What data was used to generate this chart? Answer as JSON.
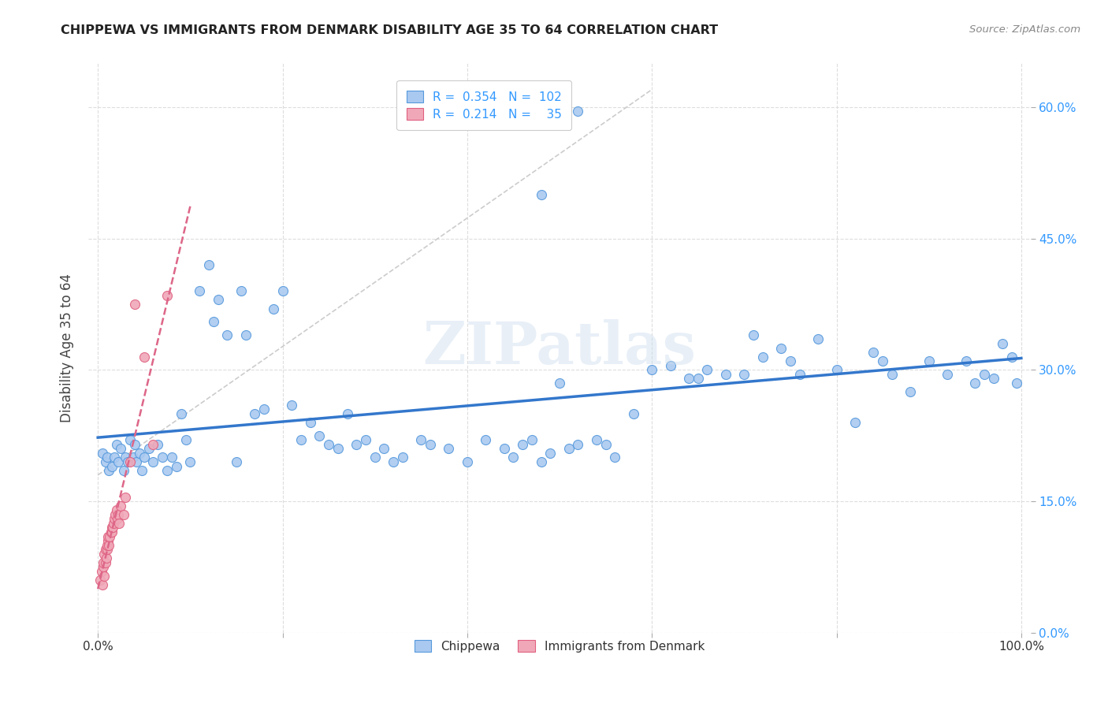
{
  "title": "CHIPPEWA VS IMMIGRANTS FROM DENMARK DISABILITY AGE 35 TO 64 CORRELATION CHART",
  "source": "Source: ZipAtlas.com",
  "ylabel": "Disability Age 35 to 64",
  "y_ticks": [
    0.0,
    0.15,
    0.3,
    0.45,
    0.6
  ],
  "y_tick_labels": [
    "0.0%",
    "15.0%",
    "30.0%",
    "45.0%",
    "60.0%"
  ],
  "x_ticks": [
    0.0,
    0.2,
    0.4,
    0.6,
    0.8,
    1.0
  ],
  "x_tick_labels": [
    "0.0%",
    "",
    "",
    "",
    "",
    "100.0%"
  ],
  "xlim": [
    -0.01,
    1.01
  ],
  "ylim": [
    0.0,
    0.65
  ],
  "R_chippewa": 0.354,
  "N_chippewa": 102,
  "R_denmark": 0.214,
  "N_denmark": 35,
  "chippewa_color": "#aac9f0",
  "denmark_color": "#f0a8b8",
  "chippewa_edge_color": "#5599dd",
  "denmark_edge_color": "#e06080",
  "chippewa_line_color": "#3377cc",
  "denmark_line_color": "#dd6688",
  "legend_text_color": "#3399ff",
  "watermark": "ZIPatlas",
  "background_color": "#ffffff",
  "chippewa_x": [
    0.005,
    0.008,
    0.01,
    0.012,
    0.015,
    0.018,
    0.02,
    0.022,
    0.025,
    0.028,
    0.03,
    0.032,
    0.035,
    0.038,
    0.04,
    0.042,
    0.045,
    0.048,
    0.05,
    0.055,
    0.06,
    0.065,
    0.07,
    0.075,
    0.08,
    0.085,
    0.09,
    0.095,
    0.1,
    0.11,
    0.12,
    0.125,
    0.13,
    0.14,
    0.15,
    0.155,
    0.16,
    0.17,
    0.18,
    0.19,
    0.2,
    0.21,
    0.22,
    0.23,
    0.24,
    0.25,
    0.26,
    0.27,
    0.28,
    0.29,
    0.3,
    0.31,
    0.32,
    0.33,
    0.35,
    0.36,
    0.38,
    0.4,
    0.42,
    0.44,
    0.45,
    0.46,
    0.47,
    0.48,
    0.49,
    0.5,
    0.51,
    0.52,
    0.54,
    0.55,
    0.56,
    0.58,
    0.6,
    0.62,
    0.64,
    0.65,
    0.66,
    0.68,
    0.7,
    0.71,
    0.72,
    0.74,
    0.75,
    0.76,
    0.78,
    0.8,
    0.82,
    0.84,
    0.85,
    0.86,
    0.88,
    0.9,
    0.92,
    0.94,
    0.95,
    0.96,
    0.97,
    0.98,
    0.99,
    0.995,
    0.52,
    0.48
  ],
  "chippewa_y": [
    0.205,
    0.195,
    0.2,
    0.185,
    0.19,
    0.2,
    0.215,
    0.195,
    0.21,
    0.185,
    0.2,
    0.195,
    0.22,
    0.2,
    0.215,
    0.195,
    0.205,
    0.185,
    0.2,
    0.21,
    0.195,
    0.215,
    0.2,
    0.185,
    0.2,
    0.19,
    0.25,
    0.22,
    0.195,
    0.39,
    0.42,
    0.355,
    0.38,
    0.34,
    0.195,
    0.39,
    0.34,
    0.25,
    0.255,
    0.37,
    0.39,
    0.26,
    0.22,
    0.24,
    0.225,
    0.215,
    0.21,
    0.25,
    0.215,
    0.22,
    0.2,
    0.21,
    0.195,
    0.2,
    0.22,
    0.215,
    0.21,
    0.195,
    0.22,
    0.21,
    0.2,
    0.215,
    0.22,
    0.195,
    0.205,
    0.285,
    0.21,
    0.215,
    0.22,
    0.215,
    0.2,
    0.25,
    0.3,
    0.305,
    0.29,
    0.29,
    0.3,
    0.295,
    0.295,
    0.34,
    0.315,
    0.325,
    0.31,
    0.295,
    0.335,
    0.3,
    0.24,
    0.32,
    0.31,
    0.295,
    0.275,
    0.31,
    0.295,
    0.31,
    0.285,
    0.295,
    0.29,
    0.33,
    0.315,
    0.285,
    0.595,
    0.5
  ],
  "denmark_x": [
    0.002,
    0.004,
    0.005,
    0.006,
    0.006,
    0.007,
    0.007,
    0.008,
    0.008,
    0.009,
    0.01,
    0.01,
    0.011,
    0.011,
    0.012,
    0.013,
    0.014,
    0.015,
    0.015,
    0.016,
    0.017,
    0.018,
    0.019,
    0.02,
    0.021,
    0.022,
    0.023,
    0.025,
    0.028,
    0.03,
    0.035,
    0.04,
    0.05,
    0.06,
    0.075
  ],
  "denmark_y": [
    0.06,
    0.07,
    0.055,
    0.075,
    0.08,
    0.065,
    0.09,
    0.08,
    0.095,
    0.085,
    0.095,
    0.1,
    0.105,
    0.11,
    0.1,
    0.11,
    0.115,
    0.115,
    0.12,
    0.12,
    0.125,
    0.13,
    0.135,
    0.14,
    0.13,
    0.135,
    0.125,
    0.145,
    0.135,
    0.155,
    0.195,
    0.375,
    0.315,
    0.215,
    0.385
  ]
}
